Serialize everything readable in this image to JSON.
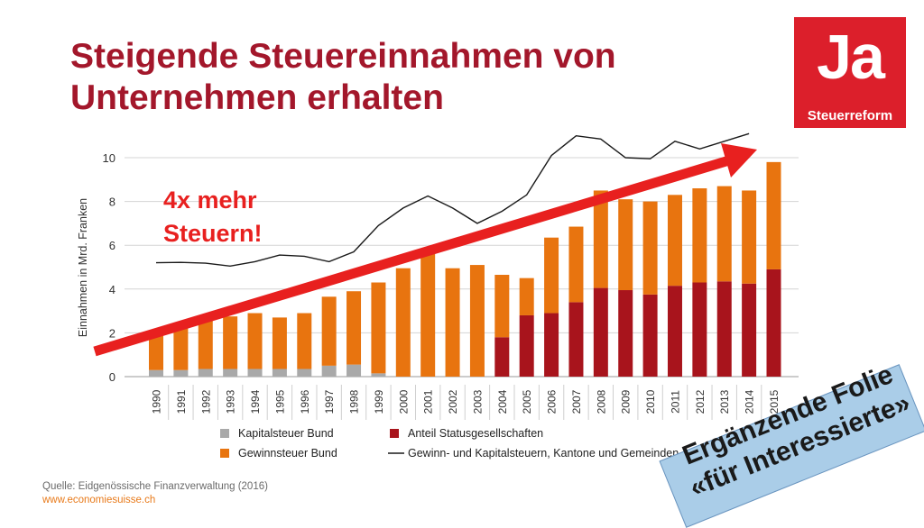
{
  "slide": {
    "title_line1": "Steigende Steuereinnahmen von",
    "title_line2": "Unternehmen erhalten",
    "logo_big": "Ja",
    "logo_small": "Steuerreform",
    "annotation_line1": "4x mehr",
    "annotation_line2": "Steuern!",
    "source_line1": "Quelle: Eidgenössische Finanzverwaltung (2016)",
    "source_line2": "www.economiesuisse.ch",
    "badge_line1": "Ergänzende Folie",
    "badge_line2": "«für Interessierte»",
    "colors": {
      "title": "#a3172b",
      "logo_bg": "#dc1f2b",
      "arrow": "#e8201f",
      "badge_bg": "#aacde8"
    }
  },
  "chart_data": {
    "type": "bar",
    "stacked": true,
    "ylabel": "Einnahmen in Mrd. Franken",
    "ylim": [
      0,
      10
    ],
    "yticks": [
      0,
      2,
      4,
      6,
      8,
      10
    ],
    "categories": [
      "1990",
      "1991",
      "1992",
      "1993",
      "1994",
      "1995",
      "1996",
      "1997",
      "1998",
      "1999",
      "2000",
      "2001",
      "2002",
      "2003",
      "2004",
      "2005",
      "2006",
      "2007",
      "2008",
      "2009",
      "2010",
      "2011",
      "2012",
      "2013",
      "2014",
      "2015"
    ],
    "series": [
      {
        "name": "Kapitalsteuer Bund",
        "kind": "bar",
        "color": "#a9a9a9",
        "values": [
          0.3,
          0.3,
          0.35,
          0.35,
          0.35,
          0.35,
          0.35,
          0.5,
          0.55,
          0.15,
          0,
          0,
          0,
          0,
          0,
          0,
          0,
          0,
          0,
          0,
          0,
          0,
          0,
          0,
          0,
          0
        ]
      },
      {
        "name": "Anteil Statusgesellschaften",
        "kind": "bar",
        "color": "#a8141c",
        "values": [
          0,
          0,
          0,
          0,
          0,
          0,
          0,
          0,
          0,
          0,
          0,
          0,
          0,
          0,
          1.8,
          2.8,
          2.9,
          3.4,
          4.05,
          3.95,
          3.75,
          4.15,
          4.3,
          4.35,
          4.25,
          4.9
        ]
      },
      {
        "name": "Gewinnsteuer Bund",
        "kind": "bar",
        "color": "#e8740f",
        "values": [
          1.75,
          1.95,
          2.35,
          2.4,
          2.55,
          2.35,
          2.55,
          3.15,
          3.35,
          4.15,
          4.95,
          5.85,
          4.95,
          5.1,
          2.85,
          1.7,
          3.45,
          3.45,
          4.45,
          4.15,
          4.25,
          4.15,
          4.3,
          4.35,
          4.25,
          4.9
        ]
      },
      {
        "name": "Gewinn- und Kapitalsteuern, Kantone und Gemeinden",
        "kind": "line",
        "color": "#1a1a1a",
        "values": [
          5.2,
          5.22,
          5.18,
          5.05,
          5.25,
          5.55,
          5.5,
          5.25,
          5.7,
          6.9,
          7.7,
          8.25,
          7.7,
          7.0,
          7.55,
          8.3,
          10.1,
          11.0,
          10.85,
          10.0,
          9.95,
          10.75,
          10.4,
          10.75,
          11.1,
          null
        ]
      }
    ]
  }
}
